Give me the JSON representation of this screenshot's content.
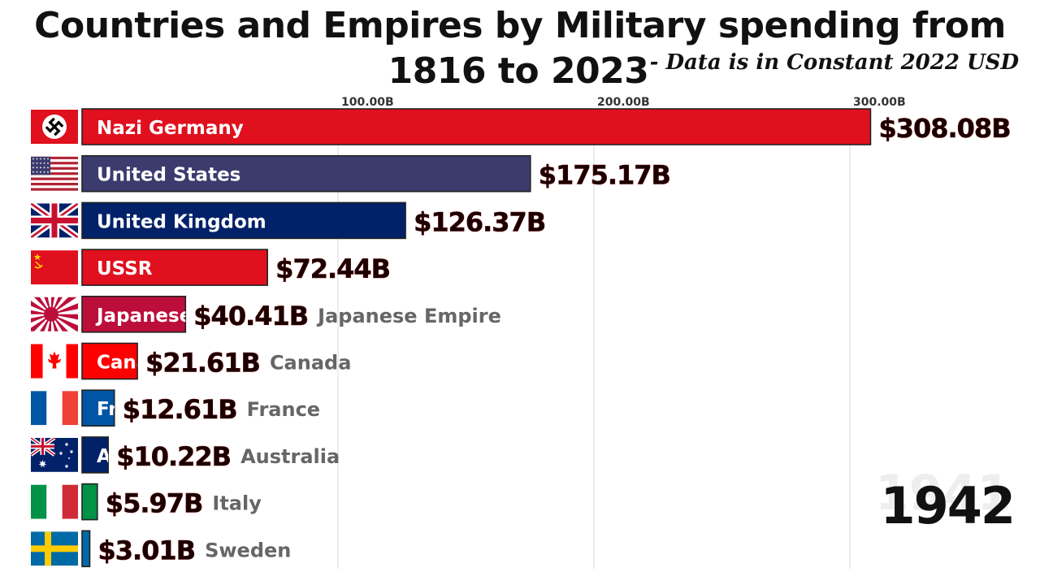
{
  "title_line1": "Countries and Empires by Military spending from",
  "title_line2": "1816 to 2023",
  "subtitle": "- Data is in Constant 2022 USD",
  "year_ghost": "1941",
  "year": "1942",
  "chart_data": {
    "type": "bar",
    "orientation": "horizontal",
    "title": "Countries and Empires by Military spending from 1816 to 2023",
    "subtitle": "- Data is in Constant 2022 USD",
    "xlim": [
      0,
      320
    ],
    "x_ticks": [
      100,
      200,
      300
    ],
    "x_tick_labels": [
      "100.00B",
      "200.00B",
      "300.00B"
    ],
    "grid": true,
    "bars": [
      {
        "name": "Nazi Germany",
        "bar_label": "Nazi Germany",
        "value": 308.08,
        "value_label": "$308.08B",
        "side_label": "",
        "color": "#e0101e",
        "flag": "nazi-germany"
      },
      {
        "name": "United States",
        "bar_label": "United States",
        "value": 175.17,
        "value_label": "$175.17B",
        "side_label": "",
        "color": "#3c3b6e",
        "flag": "united-states"
      },
      {
        "name": "United Kingdom",
        "bar_label": "United Kingdom",
        "value": 126.37,
        "value_label": "$126.37B",
        "side_label": "",
        "color": "#012169",
        "flag": "united-kingdom"
      },
      {
        "name": "USSR",
        "bar_label": "USSR",
        "value": 72.44,
        "value_label": "$72.44B",
        "side_label": "",
        "color": "#e0101e",
        "flag": "ussr"
      },
      {
        "name": "Japanese Empire",
        "bar_label": "Japanese",
        "value": 40.41,
        "value_label": "$40.41B",
        "side_label": "Japanese Empire",
        "color": "#bc0e3a",
        "flag": "japanese-empire"
      },
      {
        "name": "Canada",
        "bar_label": "Canada",
        "value": 21.61,
        "value_label": "$21.61B",
        "side_label": "Canada",
        "color": "#ff0000",
        "flag": "canada"
      },
      {
        "name": "France",
        "bar_label": "France",
        "value": 12.61,
        "value_label": "$12.61B",
        "side_label": "France",
        "color": "#0055a4",
        "flag": "france"
      },
      {
        "name": "Australia",
        "bar_label": "Australia",
        "value": 10.22,
        "value_label": "$10.22B",
        "side_label": "Australia",
        "color": "#012169",
        "flag": "australia"
      },
      {
        "name": "Italy",
        "bar_label": "Italy",
        "value": 5.97,
        "value_label": "$5.97B",
        "side_label": "Italy",
        "color": "#009246",
        "flag": "italy"
      },
      {
        "name": "Sweden",
        "bar_label": "Sweden",
        "value": 3.01,
        "value_label": "$3.01B",
        "side_label": "Sweden",
        "color": "#006aa7",
        "flag": "sweden"
      }
    ]
  }
}
